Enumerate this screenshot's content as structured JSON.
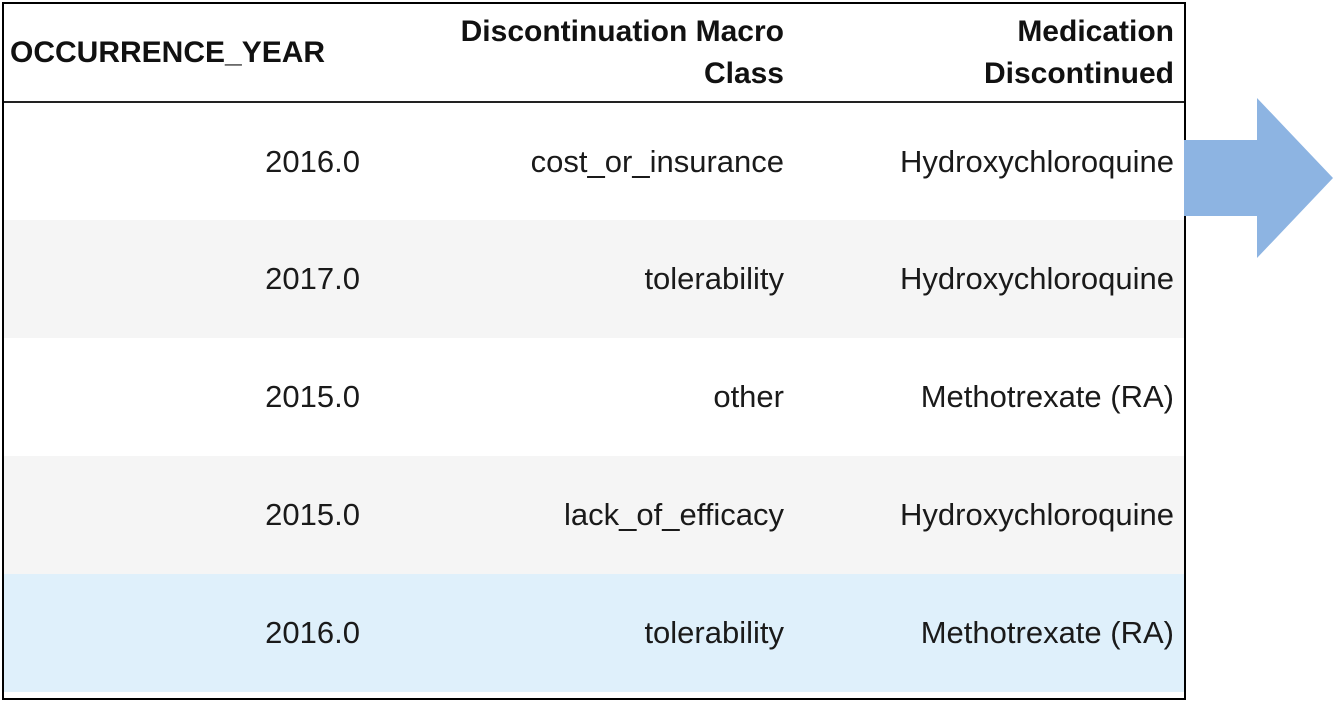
{
  "table": {
    "columns": [
      [
        "OCCURRENCE_YEAR"
      ],
      [
        "Discontinuation Macro",
        "Class"
      ],
      [
        "Medication",
        "Discontinued"
      ]
    ],
    "rows": [
      {
        "year": "2016.0",
        "macro_class": "cost_or_insurance",
        "medication": "Hydroxychloroquine"
      },
      {
        "year": "2017.0",
        "macro_class": "tolerability",
        "medication": "Hydroxychloroquine"
      },
      {
        "year": "2015.0",
        "macro_class": "other",
        "medication": "Methotrexate (RA)"
      },
      {
        "year": "2015.0",
        "macro_class": "lack_of_efficacy",
        "medication": "Hydroxychloroquine"
      },
      {
        "year": "2016.0",
        "macro_class": "tolerability",
        "medication": "Methotrexate (RA)"
      }
    ],
    "highlighted_row": 4,
    "colors": {
      "stripe": "#f5f5f5",
      "highlight": "#dff0fb",
      "arrow": "#8db4e2"
    }
  },
  "arrow": {
    "icon": "right-arrow-icon",
    "color": "#8db4e2"
  }
}
